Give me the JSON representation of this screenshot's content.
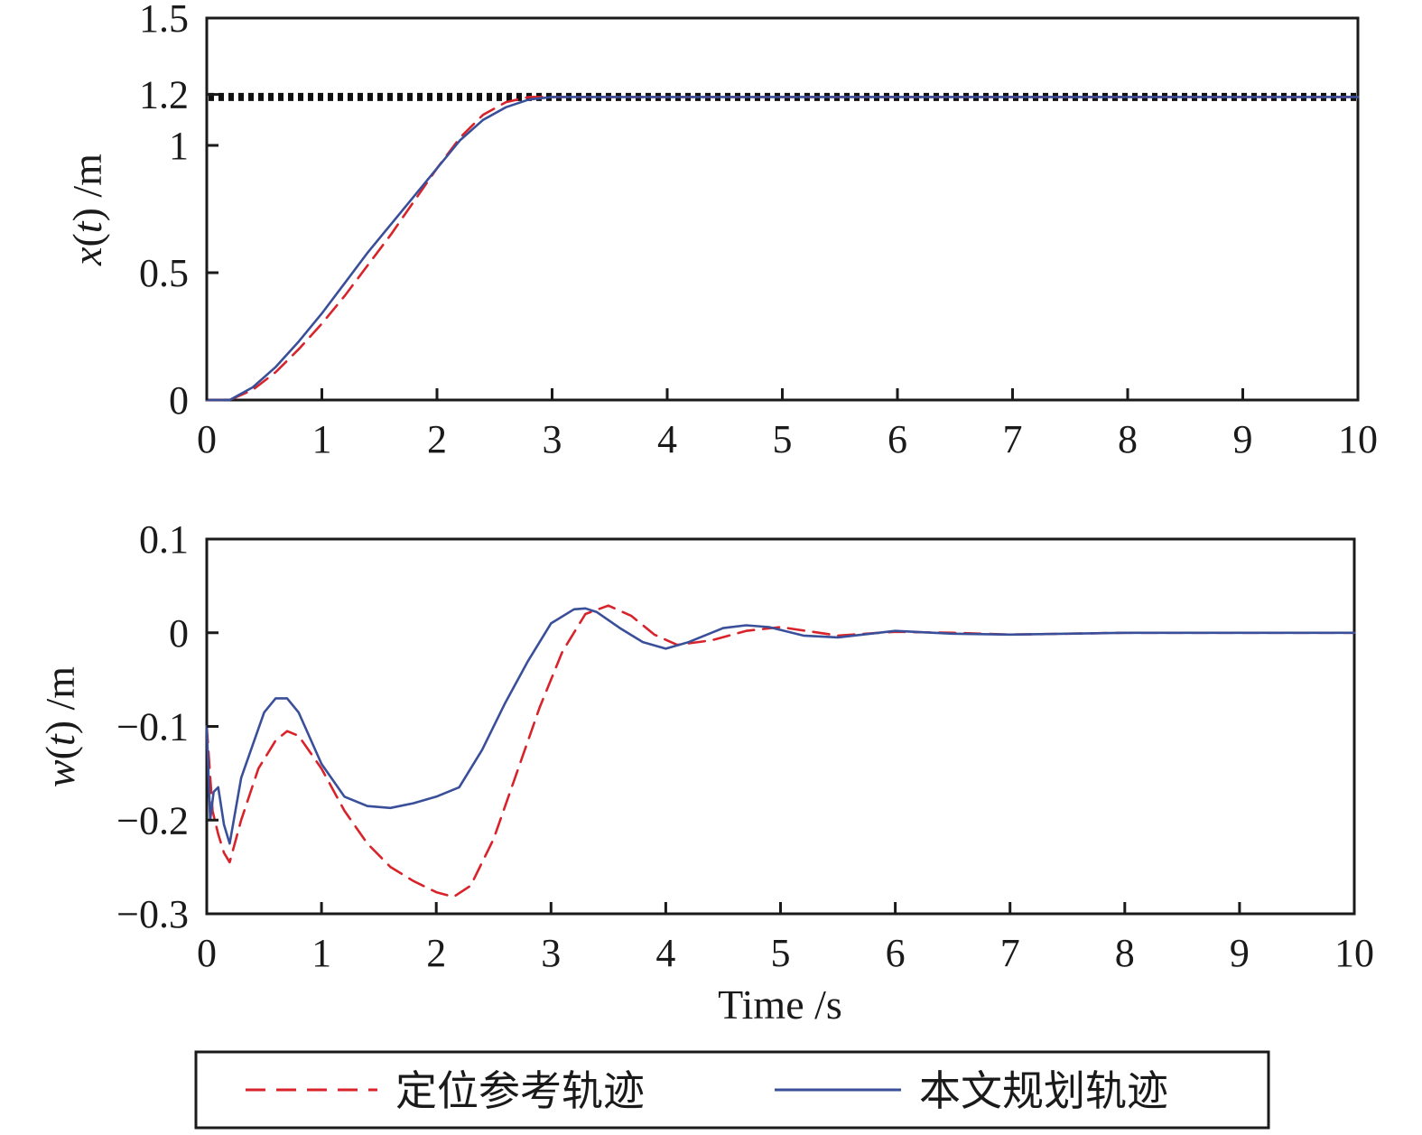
{
  "colors": {
    "reference": "#d8232a",
    "planned": "#3a4f9a",
    "target": "#111111",
    "axis": "#1a1a1a"
  },
  "legend": {
    "items": [
      {
        "label": "定位参考轨迹",
        "style": "dashed",
        "color": "#d8232a"
      },
      {
        "label": "本文规划轨迹",
        "style": "solid",
        "color": "#3a4f9a"
      }
    ],
    "placement": "bottom-center"
  },
  "chart_data": [
    {
      "type": "line",
      "title": "",
      "xlabel": "",
      "ylabel": "x(t) /m",
      "ylabel_parts": {
        "var": "x",
        "arg": "t",
        "unit": " /m"
      },
      "xlim": [
        0,
        10
      ],
      "ylim": [
        0,
        1.5
      ],
      "xticks": [
        0,
        1,
        2,
        3,
        4,
        5,
        6,
        7,
        8,
        9,
        10
      ],
      "yticks": [
        0,
        0.5,
        1,
        1.2,
        1.5
      ],
      "ytick_labels": [
        "0",
        "0.5",
        "1",
        "1.2",
        "1.5"
      ],
      "grid": false,
      "target_line": {
        "y": 1.19,
        "style": "dotted"
      },
      "series": [
        {
          "name": "定位参考轨迹",
          "style": "dashed",
          "x": [
            0,
            0.2,
            0.4,
            0.6,
            0.8,
            1.0,
            1.2,
            1.4,
            1.6,
            1.8,
            2.0,
            2.2,
            2.4,
            2.6,
            2.8,
            3.0,
            4,
            6,
            8,
            10
          ],
          "y": [
            0,
            0.0,
            0.04,
            0.11,
            0.2,
            0.3,
            0.41,
            0.53,
            0.65,
            0.78,
            0.91,
            1.03,
            1.12,
            1.17,
            1.19,
            1.19,
            1.19,
            1.19,
            1.19,
            1.19
          ]
        },
        {
          "name": "本文规划轨迹",
          "style": "solid",
          "x": [
            0,
            0.2,
            0.4,
            0.6,
            0.8,
            1.0,
            1.2,
            1.4,
            1.6,
            1.8,
            2.0,
            2.2,
            2.4,
            2.6,
            2.8,
            3.0,
            4,
            6,
            8,
            10
          ],
          "y": [
            0,
            0.0,
            0.05,
            0.13,
            0.23,
            0.34,
            0.46,
            0.58,
            0.69,
            0.8,
            0.91,
            1.02,
            1.1,
            1.15,
            1.18,
            1.19,
            1.19,
            1.19,
            1.19,
            1.19
          ]
        }
      ]
    },
    {
      "type": "line",
      "title": "",
      "xlabel": "Time /s",
      "ylabel": "w(t) /m",
      "ylabel_parts": {
        "var": "w",
        "arg": "t",
        "unit": " /m"
      },
      "xlim": [
        0,
        10
      ],
      "ylim": [
        -0.3,
        0.1
      ],
      "xticks": [
        0,
        1,
        2,
        3,
        4,
        5,
        6,
        7,
        8,
        9,
        10
      ],
      "yticks": [
        -0.3,
        -0.2,
        -0.1,
        0,
        0.1
      ],
      "ytick_labels": [
        "−0.3",
        "−0.2",
        "−0.1",
        "0",
        "0.1"
      ],
      "grid": false,
      "series": [
        {
          "name": "定位参考轨迹",
          "style": "dashed",
          "x": [
            0,
            0.05,
            0.1,
            0.15,
            0.2,
            0.3,
            0.45,
            0.6,
            0.7,
            0.8,
            1.0,
            1.2,
            1.4,
            1.6,
            1.8,
            2.0,
            2.15,
            2.3,
            2.5,
            2.7,
            2.9,
            3.1,
            3.3,
            3.5,
            3.7,
            3.9,
            4.1,
            4.4,
            4.7,
            5.0,
            5.5,
            6.0,
            6.5,
            7.0,
            8.0,
            9.0,
            10.0
          ],
          "y": [
            -0.1,
            -0.19,
            -0.215,
            -0.235,
            -0.245,
            -0.2,
            -0.145,
            -0.115,
            -0.105,
            -0.11,
            -0.145,
            -0.19,
            -0.225,
            -0.25,
            -0.265,
            -0.277,
            -0.282,
            -0.27,
            -0.22,
            -0.15,
            -0.08,
            -0.02,
            0.02,
            0.029,
            0.018,
            -0.002,
            -0.013,
            -0.008,
            0.002,
            0.006,
            -0.003,
            0.001,
            0.0,
            -0.002,
            0.0,
            0.0,
            0.0
          ]
        },
        {
          "name": "本文规划轨迹",
          "style": "solid",
          "x": [
            0,
            0.03,
            0.06,
            0.1,
            0.15,
            0.2,
            0.3,
            0.4,
            0.5,
            0.6,
            0.7,
            0.8,
            1.0,
            1.2,
            1.4,
            1.6,
            1.8,
            2.0,
            2.2,
            2.4,
            2.6,
            2.8,
            3.0,
            3.2,
            3.3,
            3.4,
            3.6,
            3.8,
            4.0,
            4.2,
            4.5,
            4.7,
            4.9,
            5.2,
            5.5,
            6.0,
            6.5,
            7.0,
            7.5,
            8.0,
            9.0,
            10.0
          ],
          "y": [
            -0.1,
            -0.2,
            -0.17,
            -0.165,
            -0.205,
            -0.225,
            -0.155,
            -0.12,
            -0.085,
            -0.07,
            -0.07,
            -0.085,
            -0.14,
            -0.175,
            -0.185,
            -0.187,
            -0.182,
            -0.175,
            -0.165,
            -0.125,
            -0.075,
            -0.03,
            0.01,
            0.025,
            0.026,
            0.022,
            0.005,
            -0.01,
            -0.017,
            -0.01,
            0.005,
            0.008,
            0.006,
            -0.003,
            -0.005,
            0.002,
            -0.001,
            -0.002,
            -0.001,
            0.0,
            0.0,
            0.0
          ]
        }
      ]
    }
  ]
}
